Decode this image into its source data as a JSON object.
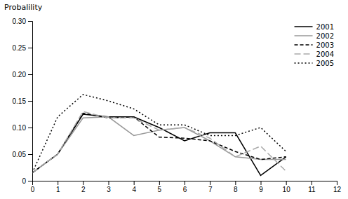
{
  "chart_data": {
    "type": "line",
    "ylabel": "Probalility",
    "x": [
      0,
      1,
      2,
      3,
      4,
      5,
      6,
      7,
      8,
      9,
      10
    ],
    "xlim": [
      0,
      12
    ],
    "ylim": [
      0,
      0.3
    ],
    "xticks": [
      0,
      1,
      2,
      3,
      4,
      5,
      6,
      7,
      8,
      9,
      10,
      11,
      12
    ],
    "yticks": [
      0,
      0.05,
      {
        "value": 0.1,
        "label": "0.10"
      },
      0.15,
      {
        "value": 0.2,
        "label": "0.20"
      },
      0.25,
      {
        "value": 0.3,
        "label": "0.30"
      }
    ],
    "grid": false,
    "legend": "upper right",
    "series": [
      {
        "name": "2001",
        "color": "#000000",
        "line_style": "solid",
        "values": [
          0.015,
          0.05,
          0.125,
          0.12,
          0.12,
          0.1,
          0.075,
          0.09,
          0.09,
          0.01,
          0.045
        ]
      },
      {
        "name": "2002",
        "color": "#999999",
        "line_style": "solid",
        "values": [
          0.015,
          0.05,
          0.118,
          0.12,
          0.085,
          0.095,
          0.1,
          0.075,
          0.045,
          0.04,
          0.04
        ]
      },
      {
        "name": "2003",
        "color": "#000000",
        "line_style": "dashed",
        "values": [
          0.015,
          0.05,
          0.127,
          0.118,
          0.12,
          0.082,
          0.08,
          0.075,
          0.055,
          0.04,
          0.045
        ]
      },
      {
        "name": "2004",
        "color": "#aaaaaa",
        "line_style": "longdash",
        "values": [
          0.015,
          0.05,
          0.13,
          0.118,
          0.118,
          0.095,
          0.1,
          0.08,
          0.045,
          0.065,
          0.018
        ]
      },
      {
        "name": "2005",
        "color": "#000000",
        "line_style": "dotted",
        "values": [
          0.015,
          0.12,
          0.162,
          0.15,
          0.135,
          0.105,
          0.105,
          0.085,
          0.085,
          0.1,
          0.055
        ]
      }
    ]
  }
}
